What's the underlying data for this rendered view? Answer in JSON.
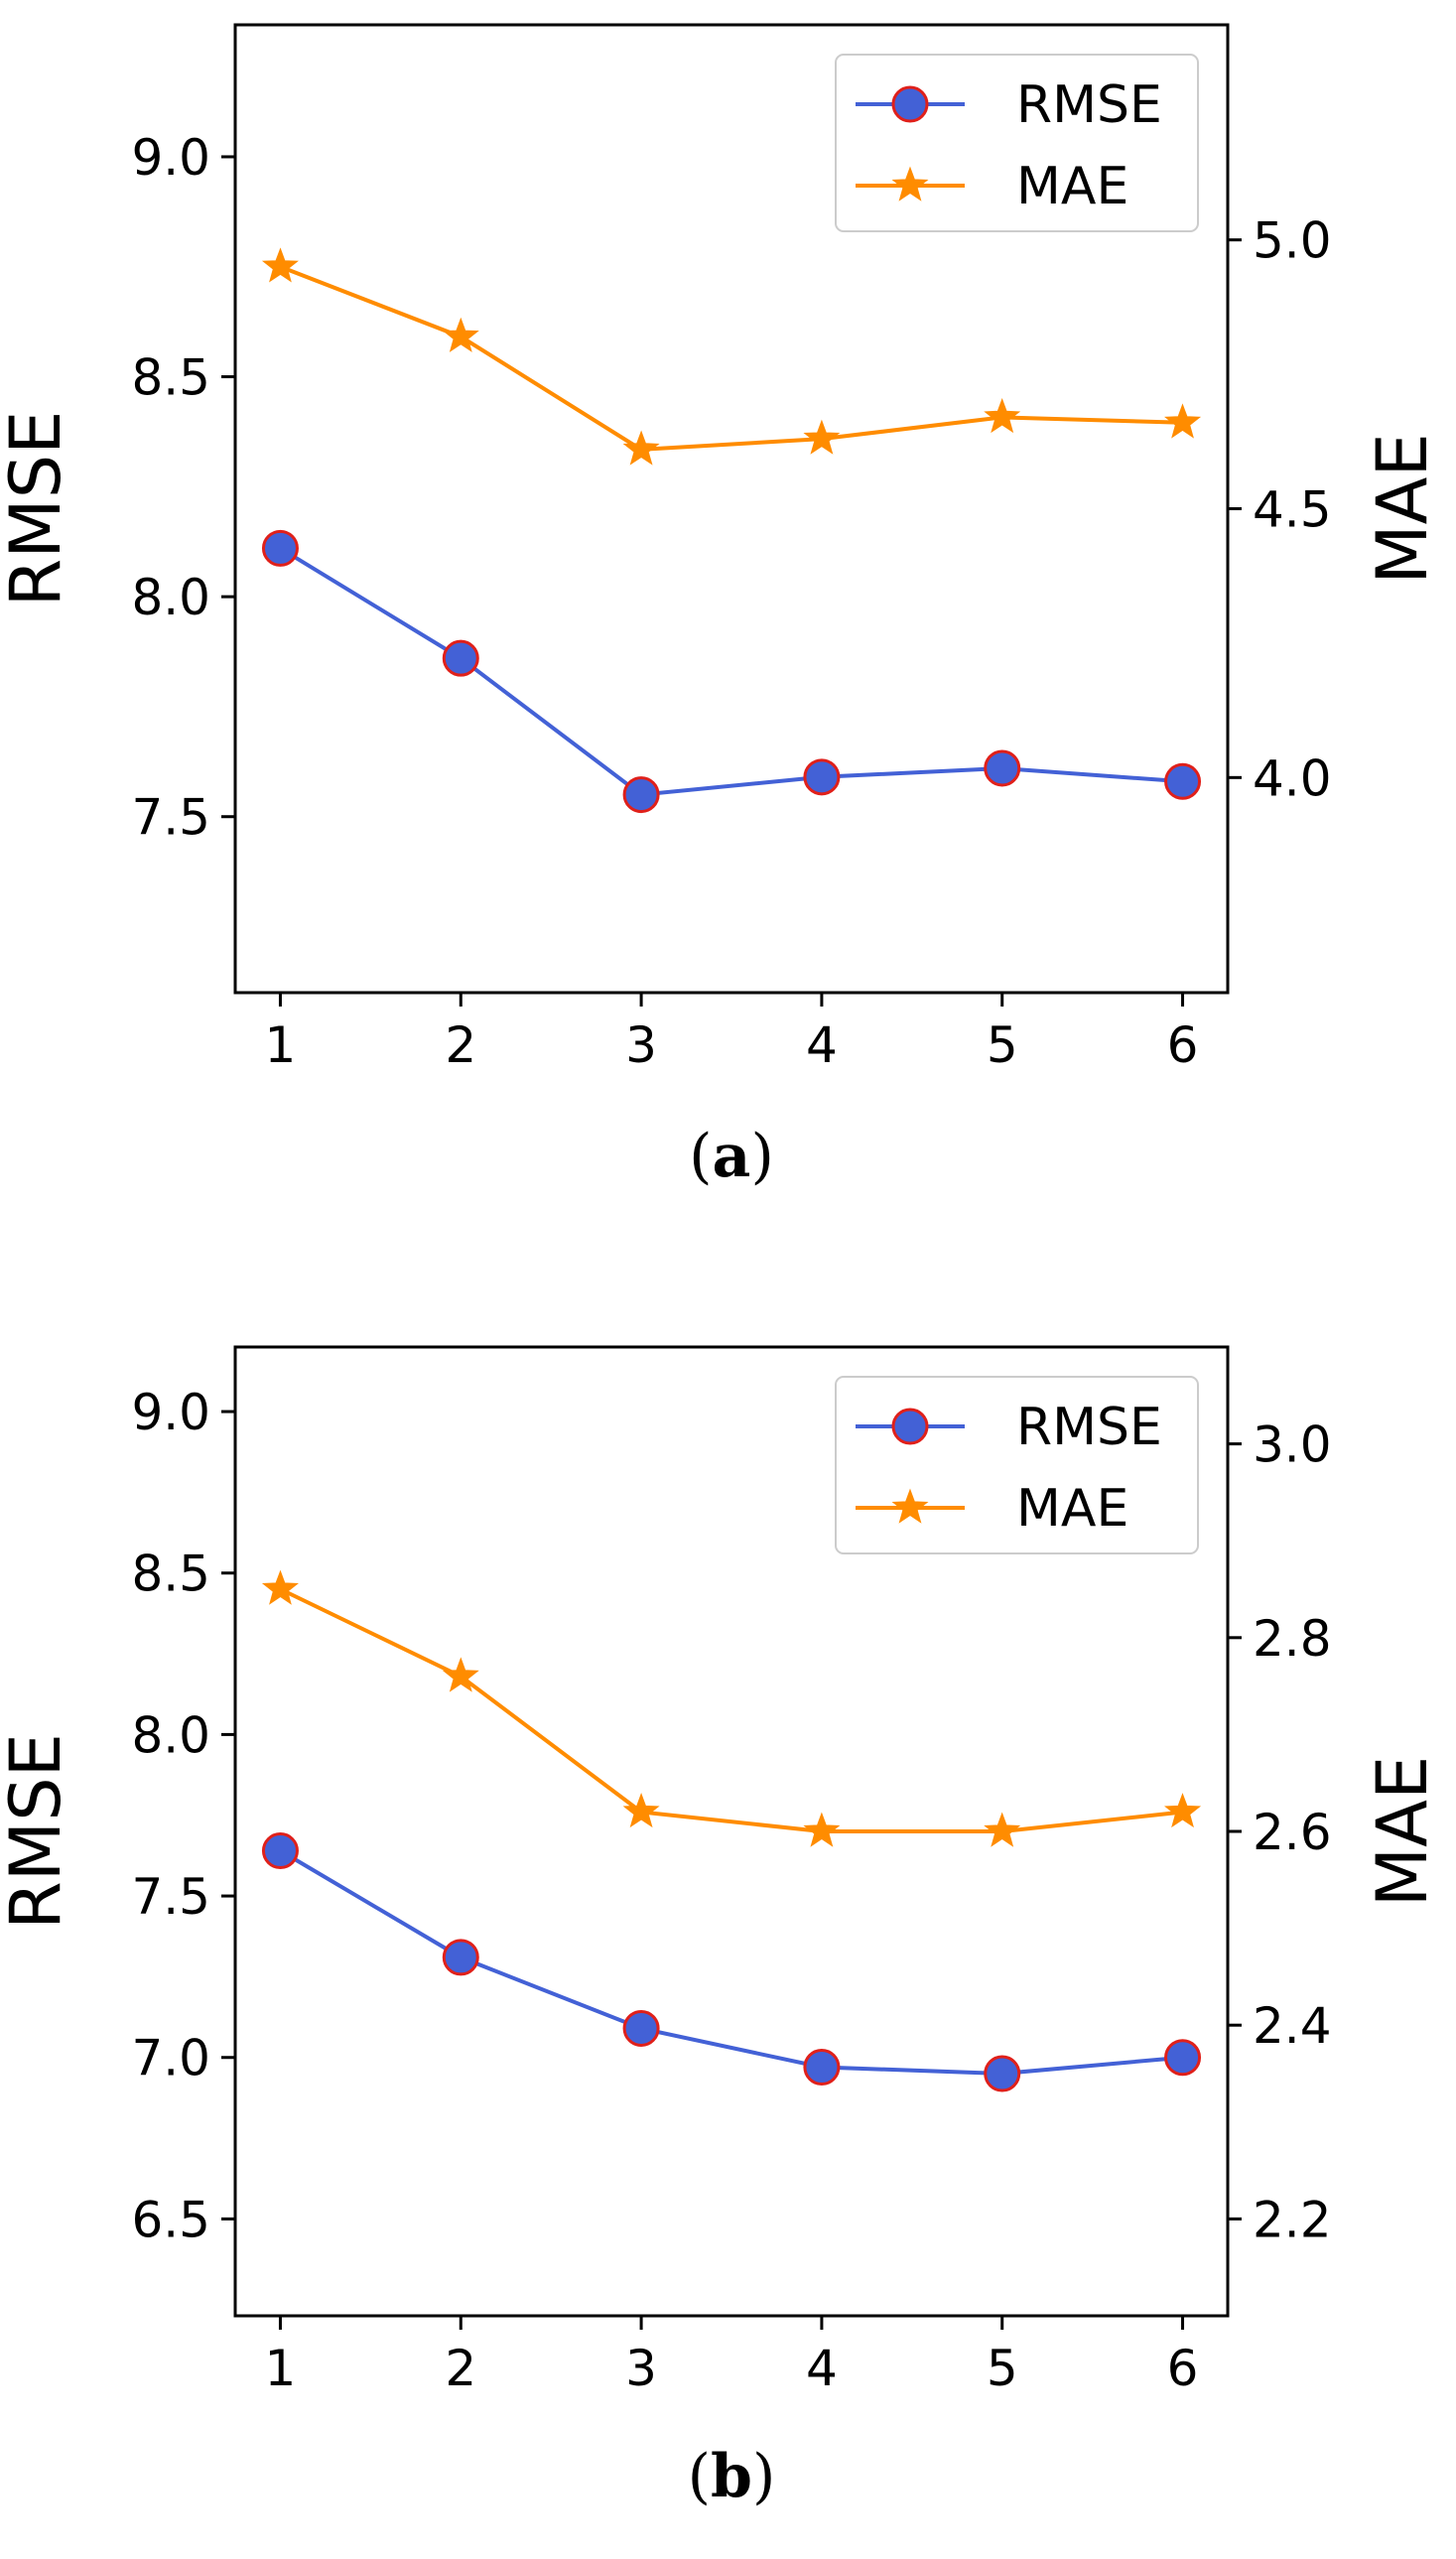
{
  "chart_data": [
    {
      "type": "line",
      "caption_open": "(",
      "caption_letter": "a",
      "caption_close": ")",
      "x": [
        1,
        2,
        3,
        4,
        5,
        6
      ],
      "x_tick_labels": [
        "1",
        "2",
        "3",
        "4",
        "5",
        "6"
      ],
      "xlim": [
        0.75,
        6.25
      ],
      "ylabel_left": "RMSE",
      "ylabel_right": "MAE",
      "ylim_left": [
        7.1,
        9.3
      ],
      "ylim_right": [
        3.6,
        5.4
      ],
      "left_ticks": [
        "7.5",
        "8.0",
        "8.5",
        "9.0"
      ],
      "right_ticks": [
        "4.0",
        "4.5",
        "5.0"
      ],
      "legend_position": "top-right",
      "series": [
        {
          "name": "RMSE",
          "axis": "left",
          "marker": "circle",
          "color": "#4361d6",
          "edge_color": "#e0201a",
          "values": [
            8.11,
            7.86,
            7.55,
            7.59,
            7.61,
            7.58
          ]
        },
        {
          "name": "MAE",
          "axis": "right",
          "marker": "star",
          "color": "#ff8c00",
          "values": [
            4.95,
            4.82,
            4.61,
            4.63,
            4.67,
            4.66
          ]
        }
      ]
    },
    {
      "type": "line",
      "caption_open": "(",
      "caption_letter": "b",
      "caption_close": ")",
      "x": [
        1,
        2,
        3,
        4,
        5,
        6
      ],
      "x_tick_labels": [
        "1",
        "2",
        "3",
        "4",
        "5",
        "6"
      ],
      "xlim": [
        0.75,
        6.25
      ],
      "ylabel_left": "RMSE",
      "ylabel_right": "MAE",
      "ylim_left": [
        6.2,
        9.2
      ],
      "ylim_right": [
        2.1,
        3.1
      ],
      "left_ticks": [
        "6.5",
        "7.0",
        "7.5",
        "8.0",
        "8.5",
        "9.0"
      ],
      "right_ticks": [
        "2.2",
        "2.4",
        "2.6",
        "2.8",
        "3.0"
      ],
      "legend_position": "top-right",
      "series": [
        {
          "name": "RMSE",
          "axis": "left",
          "marker": "circle",
          "color": "#4361d6",
          "edge_color": "#e0201a",
          "values": [
            7.64,
            7.31,
            7.09,
            6.97,
            6.95,
            7.0
          ]
        },
        {
          "name": "MAE",
          "axis": "right",
          "marker": "star",
          "color": "#ff8c00",
          "values": [
            2.85,
            2.76,
            2.62,
            2.6,
            2.6,
            2.62
          ]
        }
      ]
    }
  ]
}
